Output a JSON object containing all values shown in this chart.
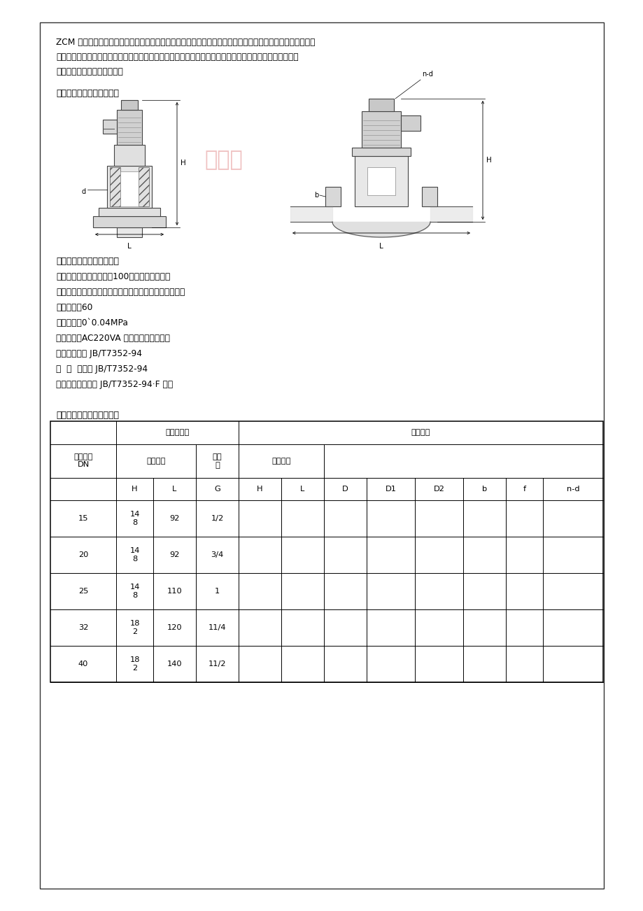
{
  "bg_color": "#ffffff",
  "border_color": "#000000",
  "intro_text_lines": [
    "ZCM 煤气电磁阀是适用于城市煤气、液化石油气、天然气等多种煤气为加热燃烧介质管路做二位式通断功换，",
    "进行温度自动控制的执行机构。它广泛应用于纺织业、印刷业的煤气热定型和玻璃、灯泡业的窑炉加热及其",
    "它行业的煤气加热自控系统。"
  ],
  "section2_title": "二、煤气电磁阀型号规格：",
  "section3_title": "三、煤气电磁阀技术参数：",
  "params": [
    "产品结构：直动式（口径100以上，二次开阀）",
    "工作介质：煤气、液化石油气、天然气等无腐蚀性气液体",
    "介质温度：60",
    "工作压差：0`0.04MPa",
    "电源电压：AC220VA 其规格可作特殊订货",
    "使用寿命：按 JB/T7352-94",
    "泄  漏  量：按 JB/T7352-94",
    "额定流量系数：按 JB/T7352-94·F 规定"
  ],
  "section4_title": "四、煤气电磁阀安装尺寸：",
  "table_data": [
    [
      "15",
      "14\n8",
      "92",
      "1/2"
    ],
    [
      "20",
      "14\n8",
      "92",
      "3/4"
    ],
    [
      "25",
      "14\n8",
      "110",
      "1"
    ],
    [
      "32",
      "18\n2",
      "120",
      "11/4"
    ],
    [
      "40",
      "18\n2",
      "140",
      "11/2"
    ]
  ],
  "watermark": "州阀门"
}
